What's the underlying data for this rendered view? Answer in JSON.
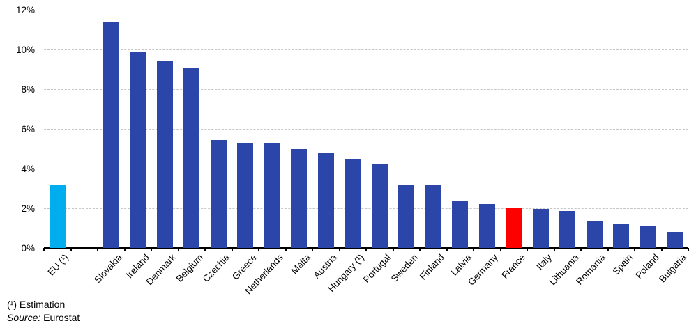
{
  "chart_data": {
    "type": "bar",
    "title": "",
    "unit": "%",
    "categories": [
      "EU (¹)",
      "Slovakia",
      "Ireland",
      "Denmark",
      "Belgium",
      "Czechia",
      "Greece",
      "Netherlands",
      "Malta",
      "Austria",
      "Hungary (¹)",
      "Portugal",
      "Sweden",
      "Finland",
      "Latvia",
      "Germany",
      "France",
      "Italy",
      "Lithuania",
      "Romania",
      "Spain",
      "Poland",
      "Bulgaria"
    ],
    "values": [
      3.2,
      11.4,
      9.9,
      9.4,
      9.1,
      5.45,
      5.3,
      5.25,
      5.0,
      4.8,
      4.5,
      4.25,
      3.2,
      3.15,
      2.35,
      2.2,
      2.0,
      1.95,
      1.85,
      1.35,
      1.2,
      1.1,
      0.8
    ],
    "ylim": [
      0,
      12
    ],
    "ytick_labels": [
      "12%",
      "10%",
      "8%",
      "6%",
      "4%",
      "2%",
      "0%"
    ],
    "grid": "horizontal-dashed",
    "legend": "none",
    "gap_after_first_bar": true,
    "colors": {
      "default_bar": "#2B46A8",
      "eu_bar": "#00AEEF",
      "france_bar": "#FF0000",
      "gridline": "#c6c6c6",
      "axis": "#000000"
    },
    "highlights": {
      "0": "eu_bar",
      "16": "france_bar"
    }
  },
  "footer": {
    "note": "(¹) Estimation",
    "source_label": "Source:",
    "source_value": "Eurostat"
  }
}
